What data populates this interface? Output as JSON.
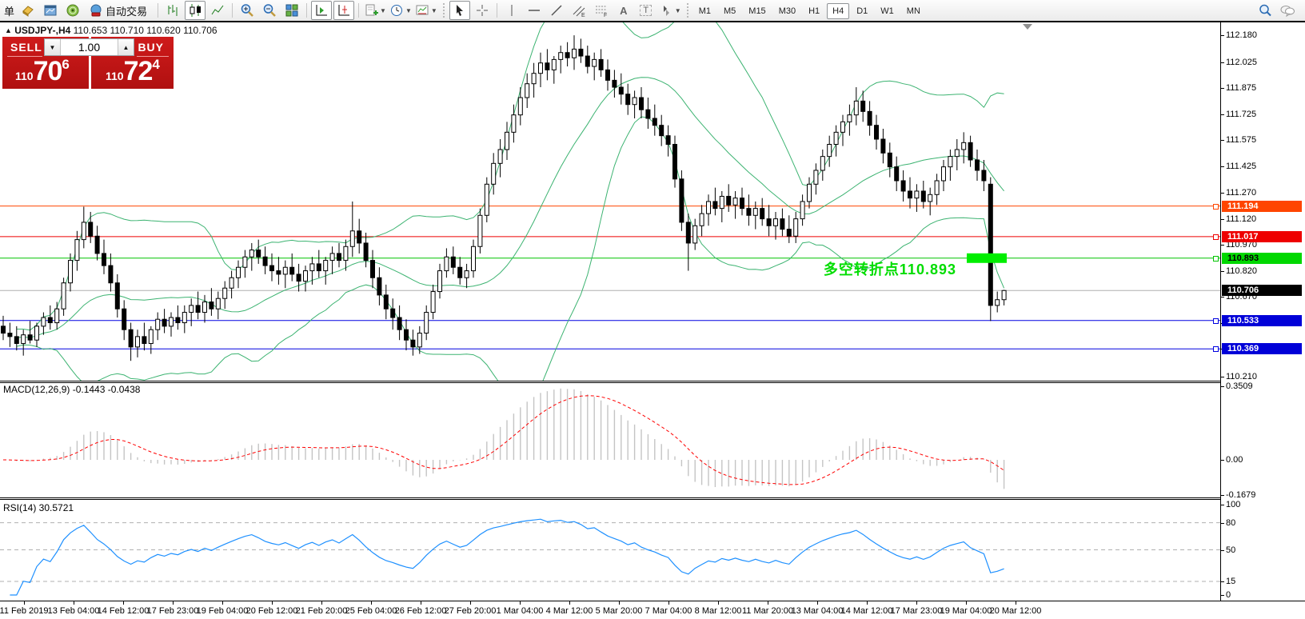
{
  "toolbar": {
    "left_label": "单",
    "autotrade_label": "自动交易",
    "channel_sub": "E",
    "fibo_sub": "F",
    "text_label": "A",
    "textbox_label": "T",
    "timeframes": [
      "M1",
      "M5",
      "M15",
      "M30",
      "H1",
      "H4",
      "D1",
      "W1",
      "MN"
    ],
    "active_timeframe": "H4"
  },
  "symbol_bar": {
    "symbol_text": "USDJPY-,H4",
    "ohlc_text": "110.653 110.710 110.620 110.706"
  },
  "trade_panel": {
    "sell_label": "SELL",
    "buy_label": "BUY",
    "volume": "1.00",
    "sell_price_small": "110",
    "sell_price_big": "70",
    "sell_price_sup": "6",
    "buy_price_small": "110",
    "buy_price_big": "72",
    "buy_price_sup": "4"
  },
  "annotation": {
    "text": "多空转折点110.893",
    "color": "#00dd00"
  },
  "indicators": {
    "macd_label": "MACD(12,26,9) -0.1443 -0.0438",
    "rsi_label": "RSI(14) 30.5721"
  },
  "axes": {
    "price_ticks": [
      112.18,
      112.025,
      111.875,
      111.725,
      111.575,
      111.425,
      111.27,
      111.12,
      110.97,
      110.82,
      110.67,
      110.52,
      110.369,
      110.21
    ],
    "macd_ticks": [
      0.3509,
      0.0,
      -0.1679
    ],
    "rsi_ticks": [
      100,
      80,
      50,
      15,
      0
    ],
    "rsi_levels": [
      80,
      50,
      15
    ],
    "date_labels": [
      "11 Feb 2019",
      "13 Feb 04:00",
      "14 Feb 12:00",
      "17 Feb 23:00",
      "19 Feb 04:00",
      "20 Feb 12:00",
      "21 Feb 20:00",
      "25 Feb 04:00",
      "26 Feb 12:00",
      "27 Feb 20:00",
      "1 Mar 04:00",
      "4 Mar 12:00",
      "5 Mar 20:00",
      "7 Mar 04:00",
      "8 Mar 12:00",
      "11 Mar 20:00",
      "13 Mar 04:00",
      "14 Mar 12:00",
      "17 Mar 23:00",
      "19 Mar 04:00",
      "20 Mar 12:00"
    ]
  },
  "hlines": [
    {
      "price": 111.194,
      "color": "#ff4500",
      "label": "111.194",
      "label_bg": "#ff4500",
      "label_fg": "#ffffff"
    },
    {
      "price": 111.017,
      "color": "#ee0000",
      "label": "111.017",
      "label_bg": "#ee0000",
      "label_fg": "#ffffff"
    },
    {
      "price": 110.893,
      "color": "#00c400",
      "label": "110.893",
      "label_bg": "#00d800",
      "label_fg": "#000000"
    },
    {
      "price": 110.533,
      "color": "#0000e0",
      "label": "110.533",
      "label_bg": "#0000d8",
      "label_fg": "#ffffff"
    },
    {
      "price": 110.369,
      "color": "#0000e0",
      "label": "110.369",
      "label_bg": "#0000d8",
      "label_fg": "#ffffff"
    }
  ],
  "current_price": {
    "price": 110.706,
    "label": "110.706",
    "line_color": "#b0b0b0",
    "label_bg": "#000000",
    "label_fg": "#ffffff"
  },
  "highlight_box": {
    "price": 110.893,
    "color": "#00ee00"
  },
  "colors": {
    "bollinger": "#3cb371",
    "bull": "#ffffff",
    "bear": "#000000",
    "wick": "#000000",
    "macd_hist": "#c4c4c4",
    "macd_signal": "#ff0000",
    "rsi": "#1e90ff",
    "grid_dash": "#b0b0b0",
    "panel_red": "#c3161c"
  },
  "chart_data": {
    "type": "candlestick",
    "symbol": "USDJPY",
    "timeframe": "H4",
    "title": "USDJPY-,H4",
    "price_range": [
      110.19,
      112.245
    ],
    "overlays": [
      "Bollinger Bands(20,2)"
    ],
    "panes": [
      {
        "type": "macd",
        "params": [
          12,
          26,
          9
        ],
        "values_shown": [
          -0.1443,
          -0.0438
        ],
        "range": [
          -0.1679,
          0.3509
        ]
      },
      {
        "type": "rsi",
        "params": [
          14
        ],
        "value_shown": 30.5721,
        "range": [
          0,
          100
        ],
        "levels": [
          80,
          50,
          15
        ]
      }
    ],
    "x_axis_labels": [
      "11 Feb 2019",
      "13 Feb 04:00",
      "14 Feb 12:00",
      "17 Feb 23:00",
      "19 Feb 04:00",
      "20 Feb 12:00",
      "21 Feb 20:00",
      "25 Feb 04:00",
      "26 Feb 12:00",
      "27 Feb 20:00",
      "1 Mar 04:00",
      "4 Mar 12:00",
      "5 Mar 20:00",
      "7 Mar 04:00",
      "8 Mar 12:00",
      "11 Mar 20:00",
      "13 Mar 04:00",
      "14 Mar 12:00",
      "17 Mar 23:00",
      "19 Mar 04:00",
      "20 Mar 12:00"
    ],
    "horizontal_levels": [
      111.194,
      111.017,
      110.893,
      110.533,
      110.369
    ],
    "last_ohlc": [
      110.653,
      110.71,
      110.62,
      110.706
    ],
    "candles_ohlc": [
      [
        110.5,
        110.56,
        110.42,
        110.46
      ],
      [
        110.46,
        110.52,
        110.38,
        110.44
      ],
      [
        110.44,
        110.5,
        110.36,
        110.4
      ],
      [
        110.4,
        110.48,
        110.33,
        110.45
      ],
      [
        110.45,
        110.53,
        110.4,
        110.42
      ],
      [
        110.42,
        110.52,
        110.38,
        110.5
      ],
      [
        110.5,
        110.58,
        110.45,
        110.55
      ],
      [
        110.55,
        110.62,
        110.48,
        110.52
      ],
      [
        110.52,
        110.64,
        110.48,
        110.6
      ],
      [
        110.6,
        110.78,
        110.56,
        110.75
      ],
      [
        110.75,
        110.92,
        110.7,
        110.88
      ],
      [
        110.88,
        111.05,
        110.82,
        111.0
      ],
      [
        111.0,
        111.19,
        110.95,
        111.1
      ],
      [
        111.1,
        111.16,
        110.98,
        111.02
      ],
      [
        111.02,
        111.08,
        110.88,
        110.92
      ],
      [
        110.92,
        111.0,
        110.8,
        110.85
      ],
      [
        110.85,
        110.92,
        110.7,
        110.75
      ],
      [
        110.75,
        110.8,
        110.55,
        110.6
      ],
      [
        110.6,
        110.65,
        110.42,
        110.48
      ],
      [
        110.48,
        110.52,
        110.3,
        110.38
      ],
      [
        110.38,
        110.48,
        110.32,
        110.44
      ],
      [
        110.44,
        110.52,
        110.36,
        110.4
      ],
      [
        110.4,
        110.5,
        110.34,
        110.48
      ],
      [
        110.48,
        110.58,
        110.42,
        110.54
      ],
      [
        110.54,
        110.6,
        110.46,
        110.5
      ],
      [
        110.5,
        110.58,
        110.44,
        110.55
      ],
      [
        110.55,
        110.62,
        110.48,
        110.52
      ],
      [
        110.52,
        110.62,
        110.46,
        110.58
      ],
      [
        110.58,
        110.66,
        110.5,
        110.62
      ],
      [
        110.62,
        110.7,
        110.54,
        110.58
      ],
      [
        110.58,
        110.68,
        110.52,
        110.64
      ],
      [
        110.64,
        110.72,
        110.56,
        110.6
      ],
      [
        110.6,
        110.7,
        110.54,
        110.66
      ],
      [
        110.66,
        110.76,
        110.6,
        110.72
      ],
      [
        110.72,
        110.82,
        110.66,
        110.78
      ],
      [
        110.78,
        110.88,
        110.72,
        110.84
      ],
      [
        110.84,
        110.94,
        110.78,
        110.9
      ],
      [
        110.9,
        110.98,
        110.82,
        110.94
      ],
      [
        110.94,
        111.0,
        110.86,
        110.9
      ],
      [
        110.9,
        110.96,
        110.8,
        110.85
      ],
      [
        110.85,
        110.92,
        110.76,
        110.82
      ],
      [
        110.82,
        110.9,
        110.74,
        110.8
      ],
      [
        110.8,
        110.88,
        110.72,
        110.84
      ],
      [
        110.84,
        110.92,
        110.76,
        110.8
      ],
      [
        110.8,
        110.86,
        110.7,
        110.76
      ],
      [
        110.76,
        110.85,
        110.7,
        110.82
      ],
      [
        110.82,
        110.9,
        110.74,
        110.86
      ],
      [
        110.86,
        110.94,
        110.78,
        110.82
      ],
      [
        110.82,
        110.9,
        110.74,
        110.88
      ],
      [
        110.88,
        110.96,
        110.8,
        110.92
      ],
      [
        110.92,
        110.98,
        110.84,
        110.88
      ],
      [
        110.88,
        111.0,
        110.82,
        110.96
      ],
      [
        110.96,
        111.22,
        110.9,
        111.05
      ],
      [
        111.05,
        111.12,
        110.92,
        110.98
      ],
      [
        110.98,
        111.04,
        110.84,
        110.88
      ],
      [
        110.88,
        110.94,
        110.72,
        110.78
      ],
      [
        110.78,
        110.84,
        110.62,
        110.68
      ],
      [
        110.68,
        110.74,
        110.54,
        110.6
      ],
      [
        110.6,
        110.66,
        110.48,
        110.55
      ],
      [
        110.55,
        110.62,
        110.42,
        110.48
      ],
      [
        110.48,
        110.54,
        110.36,
        110.42
      ],
      [
        110.42,
        110.48,
        110.33,
        110.38
      ],
      [
        110.38,
        110.5,
        110.34,
        110.46
      ],
      [
        110.46,
        110.62,
        110.42,
        110.58
      ],
      [
        110.58,
        110.74,
        110.54,
        110.7
      ],
      [
        110.7,
        110.86,
        110.66,
        110.82
      ],
      [
        110.82,
        110.95,
        110.78,
        110.9
      ],
      [
        110.9,
        110.96,
        110.8,
        110.84
      ],
      [
        110.84,
        110.9,
        110.74,
        110.78
      ],
      [
        110.78,
        110.86,
        110.72,
        110.82
      ],
      [
        110.82,
        111.0,
        110.78,
        110.96
      ],
      [
        110.96,
        111.18,
        110.92,
        111.14
      ],
      [
        111.14,
        111.36,
        111.1,
        111.32
      ],
      [
        111.32,
        111.5,
        111.26,
        111.44
      ],
      [
        111.44,
        111.58,
        111.36,
        111.52
      ],
      [
        111.52,
        111.68,
        111.46,
        111.62
      ],
      [
        111.62,
        111.78,
        111.56,
        111.72
      ],
      [
        111.72,
        111.88,
        111.66,
        111.82
      ],
      [
        111.82,
        111.96,
        111.76,
        111.9
      ],
      [
        111.9,
        112.02,
        111.82,
        111.96
      ],
      [
        111.96,
        112.08,
        111.88,
        112.02
      ],
      [
        112.02,
        112.1,
        111.92,
        111.98
      ],
      [
        111.98,
        112.06,
        111.9,
        112.04
      ],
      [
        112.04,
        112.12,
        111.96,
        112.08
      ],
      [
        112.08,
        112.14,
        112.0,
        112.05
      ],
      [
        112.05,
        112.18,
        111.98,
        112.1
      ],
      [
        112.1,
        112.16,
        112.02,
        112.06
      ],
      [
        112.06,
        112.12,
        111.96,
        112.0
      ],
      [
        112.0,
        112.08,
        111.92,
        112.04
      ],
      [
        112.04,
        112.1,
        111.94,
        111.98
      ],
      [
        111.98,
        112.04,
        111.86,
        111.92
      ],
      [
        111.92,
        111.98,
        111.82,
        111.88
      ],
      [
        111.88,
        111.96,
        111.78,
        111.84
      ],
      [
        111.84,
        111.9,
        111.72,
        111.78
      ],
      [
        111.78,
        111.86,
        111.7,
        111.82
      ],
      [
        111.82,
        111.88,
        111.7,
        111.75
      ],
      [
        111.75,
        111.82,
        111.64,
        111.7
      ],
      [
        111.7,
        111.78,
        111.6,
        111.66
      ],
      [
        111.66,
        111.72,
        111.54,
        111.6
      ],
      [
        111.6,
        111.66,
        111.48,
        111.55
      ],
      [
        111.55,
        111.6,
        111.3,
        111.35
      ],
      [
        111.35,
        111.4,
        111.05,
        111.1
      ],
      [
        111.1,
        111.15,
        110.82,
        110.98
      ],
      [
        110.98,
        111.12,
        110.94,
        111.08
      ],
      [
        111.08,
        111.2,
        111.02,
        111.15
      ],
      [
        111.15,
        111.26,
        111.08,
        111.22
      ],
      [
        111.22,
        111.3,
        111.14,
        111.18
      ],
      [
        111.18,
        111.28,
        111.1,
        111.25
      ],
      [
        111.25,
        111.32,
        111.16,
        111.2
      ],
      [
        111.2,
        111.28,
        111.12,
        111.24
      ],
      [
        111.24,
        111.3,
        111.14,
        111.18
      ],
      [
        111.18,
        111.26,
        111.08,
        111.14
      ],
      [
        111.14,
        111.22,
        111.06,
        111.18
      ],
      [
        111.18,
        111.24,
        111.08,
        111.12
      ],
      [
        111.12,
        111.2,
        111.02,
        111.08
      ],
      [
        111.08,
        111.16,
        111.0,
        111.12
      ],
      [
        111.12,
        111.18,
        111.02,
        111.06
      ],
      [
        111.06,
        111.14,
        110.98,
        111.02
      ],
      [
        111.02,
        111.16,
        110.98,
        111.12
      ],
      [
        111.12,
        111.26,
        111.08,
        111.22
      ],
      [
        111.22,
        111.36,
        111.18,
        111.32
      ],
      [
        111.32,
        111.44,
        111.26,
        111.4
      ],
      [
        111.4,
        111.52,
        111.34,
        111.48
      ],
      [
        111.48,
        111.6,
        111.42,
        111.55
      ],
      [
        111.55,
        111.66,
        111.48,
        111.62
      ],
      [
        111.62,
        111.72,
        111.54,
        111.68
      ],
      [
        111.68,
        111.78,
        111.6,
        111.72
      ],
      [
        111.72,
        111.88,
        111.66,
        111.8
      ],
      [
        111.8,
        111.86,
        111.68,
        111.74
      ],
      [
        111.74,
        111.8,
        111.6,
        111.66
      ],
      [
        111.66,
        111.72,
        111.52,
        111.58
      ],
      [
        111.58,
        111.64,
        111.44,
        111.5
      ],
      [
        111.5,
        111.56,
        111.36,
        111.42
      ],
      [
        111.42,
        111.48,
        111.28,
        111.34
      ],
      [
        111.34,
        111.4,
        111.22,
        111.28
      ],
      [
        111.28,
        111.36,
        111.18,
        111.24
      ],
      [
        111.24,
        111.32,
        111.16,
        111.28
      ],
      [
        111.28,
        111.34,
        111.18,
        111.22
      ],
      [
        111.22,
        111.3,
        111.14,
        111.26
      ],
      [
        111.26,
        111.38,
        111.2,
        111.34
      ],
      [
        111.34,
        111.46,
        111.28,
        111.42
      ],
      [
        111.42,
        111.52,
        111.34,
        111.48
      ],
      [
        111.48,
        111.58,
        111.4,
        111.52
      ],
      [
        111.52,
        111.62,
        111.44,
        111.56
      ],
      [
        111.56,
        111.6,
        111.42,
        111.46
      ],
      [
        111.46,
        111.52,
        111.34,
        111.4
      ],
      [
        111.4,
        111.46,
        111.28,
        111.34
      ],
      [
        111.32,
        111.36,
        110.53,
        110.62
      ],
      [
        110.62,
        110.7,
        110.58,
        110.653
      ],
      [
        110.653,
        110.71,
        110.62,
        110.706
      ]
    ]
  }
}
